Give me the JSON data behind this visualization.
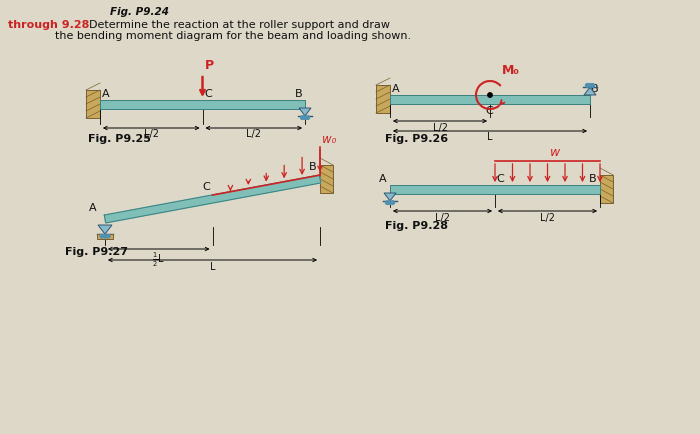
{
  "bg_color": "#ddd8c8",
  "beam_color": "#80bfb8",
  "beam_edge_color": "#3a8080",
  "wall_color": "#c8a85a",
  "load_color": "#cc2222",
  "text_color": "#111111",
  "red_text": "#cc2222",
  "figsize": [
    7.0,
    4.34
  ],
  "dpi": 100,
  "title_line1": "Fig. P9.24",
  "title_line2_red": "through 9.28",
  "title_line2_black": "  Determine the reaction at the roller support and draw",
  "title_line3": "the bending moment diagram for the beam and loading shown.",
  "fig925_label": "Fig. P9.25",
  "fig926_label": "Fig. P9.26",
  "fig927_label": "Fig. P9.27",
  "fig928_label": "Fig. P9.28"
}
